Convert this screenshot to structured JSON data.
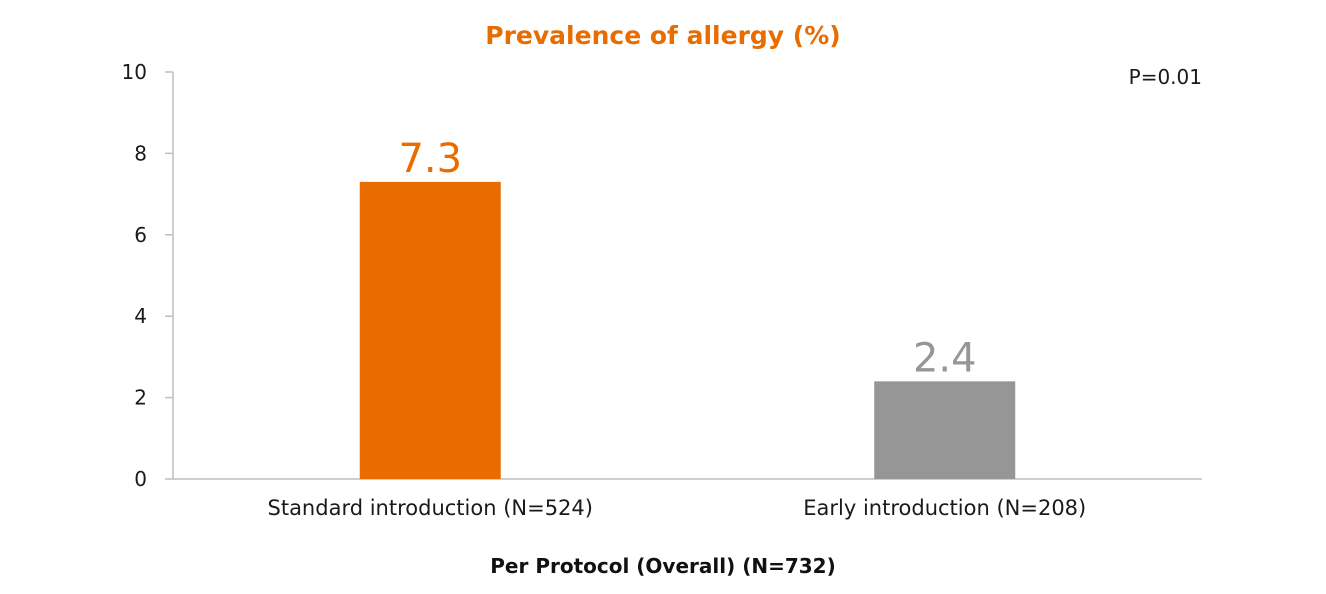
{
  "chart_data": {
    "type": "bar",
    "title": "Prevalence of allergy (%)",
    "xlabel": "Per Protocol (Overall) (N=732)",
    "ylabel": "",
    "ylim": [
      0,
      10
    ],
    "yticks": [
      "0",
      "2",
      "4",
      "6",
      "8",
      "10"
    ],
    "categories": [
      "Standard introduction (N=524)",
      "Early introduction (N=208)"
    ],
    "values": [
      7.3,
      2.4
    ],
    "value_labels": [
      "7.3",
      "2.4"
    ],
    "bar_colors": [
      "#E86C00",
      "#969696"
    ],
    "annotation": "P=0.01",
    "grid": false,
    "legend": "none"
  },
  "colors": {
    "title": "#E86C00",
    "axis": "#bfbfbf"
  }
}
